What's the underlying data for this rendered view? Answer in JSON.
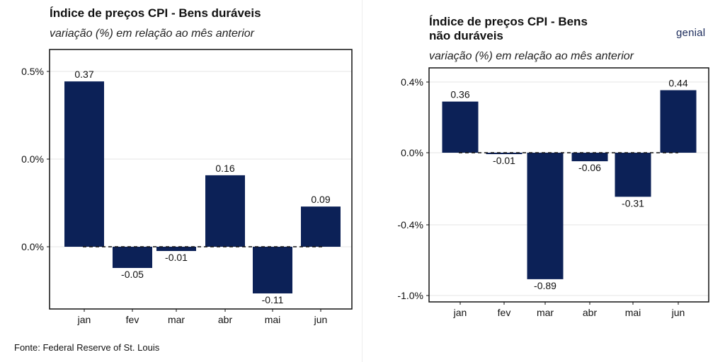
{
  "source": "Fonte: Federal Reserve of St. Louis",
  "brand": "genial",
  "colors": {
    "bar": "#0c2157",
    "grid": "#e6e6e6",
    "frame": "#111111"
  },
  "chart_data": [
    {
      "type": "bar",
      "title": "Índice de preços CPI - Bens duráveis",
      "subtitle": "variação (%) em relação ao mês anterior",
      "categories": [
        "jan",
        "fev",
        "mar",
        "abr",
        "mai",
        "jun"
      ],
      "values": [
        0.37,
        -0.05,
        -0.01,
        0.16,
        -0.11,
        0.09
      ],
      "value_labels": [
        "0.37",
        "-0.05",
        "-0.01",
        "0.16",
        "-0.11",
        "0.09"
      ],
      "ytick_labels": [
        "0.5%",
        "0.0%",
        "0.0%"
      ],
      "grid": true,
      "xlabel": "",
      "ylabel": ""
    },
    {
      "type": "bar",
      "title_lines": [
        "Índice de preços CPI - Bens",
        "não duráveis"
      ],
      "subtitle": "variação (%) em relação ao mês anterior",
      "categories": [
        "jan",
        "fev",
        "mar",
        "abr",
        "mai",
        "jun"
      ],
      "values": [
        0.36,
        -0.01,
        -0.89,
        -0.06,
        -0.31,
        0.44
      ],
      "value_labels": [
        "0.36",
        "-0.01",
        "-0.89",
        "-0.06",
        "-0.31",
        "0.44"
      ],
      "ytick_labels": [
        "0.4%",
        "0.0%",
        "-0.4%",
        "-1.0%"
      ],
      "grid": true,
      "xlabel": "",
      "ylabel": ""
    }
  ]
}
